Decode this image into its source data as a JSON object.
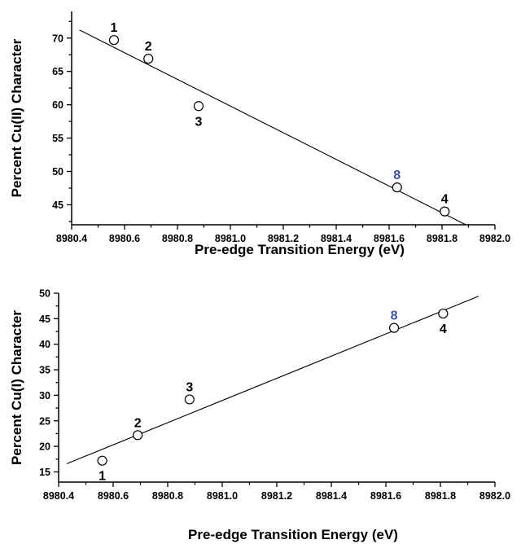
{
  "chart_data": [
    {
      "type": "scatter",
      "title": "",
      "xlabel": "Pre-edge Transition Energy (eV)",
      "ylabel": "Percent Cu(II) Character",
      "xlim": [
        8980.4,
        8982.0
      ],
      "ylim": [
        42,
        74
      ],
      "xticks": [
        8980.4,
        8980.6,
        8980.8,
        8981.0,
        8981.2,
        8981.4,
        8981.6,
        8981.8,
        8982.0
      ],
      "xtick_labels": [
        "8980.4",
        "8980.6",
        "8980.8",
        "8981.0",
        "8981.2",
        "8981.4",
        "8981.6",
        "8981.8",
        "8982.0"
      ],
      "yticks": [
        45,
        50,
        55,
        60,
        65,
        70
      ],
      "ytick_labels": [
        "45",
        "50",
        "55",
        "60",
        "65",
        "70"
      ],
      "points": [
        {
          "label": "1",
          "x": 8980.56,
          "y": 69.7,
          "label_pos": "above",
          "label_color": "#000000"
        },
        {
          "label": "2",
          "x": 8980.69,
          "y": 66.9,
          "label_pos": "above",
          "label_color": "#000000"
        },
        {
          "label": "3",
          "x": 8980.88,
          "y": 59.8,
          "label_pos": "below",
          "label_color": "#000000"
        },
        {
          "label": "8",
          "x": 8981.63,
          "y": 47.6,
          "label_pos": "above",
          "label_color": "#3d50a8"
        },
        {
          "label": "4",
          "x": 8981.81,
          "y": 44.0,
          "label_pos": "above",
          "label_color": "#000000"
        }
      ],
      "fit_line": {
        "x": [
          8980.43,
          8981.89
        ],
        "y": [
          71.2,
          42.0
        ]
      }
    },
    {
      "type": "scatter",
      "title": "",
      "xlabel": "Pre-edge Transition Energy (eV)",
      "ylabel": "Percent Cu(I) Character",
      "xlim": [
        8980.4,
        8982.0
      ],
      "ylim": [
        13,
        50
      ],
      "xticks": [
        8980.4,
        8980.6,
        8980.8,
        8981.0,
        8981.2,
        8981.4,
        8981.6,
        8981.8,
        8982.0
      ],
      "xtick_labels": [
        "8980.4",
        "8980.6",
        "8980.8",
        "8981.0",
        "8981.2",
        "8981.4",
        "8981.6",
        "8981.8",
        "8982.0"
      ],
      "yticks": [
        15,
        20,
        25,
        30,
        35,
        40,
        45,
        50
      ],
      "ytick_labels": [
        "15",
        "20",
        "25",
        "30",
        "35",
        "40",
        "45",
        "50"
      ],
      "points": [
        {
          "label": "1",
          "x": 8980.56,
          "y": 17.2,
          "label_pos": "below",
          "label_color": "#000000"
        },
        {
          "label": "2",
          "x": 8980.69,
          "y": 22.2,
          "label_pos": "above",
          "label_color": "#000000"
        },
        {
          "label": "3",
          "x": 8980.88,
          "y": 29.2,
          "label_pos": "above",
          "label_color": "#000000"
        },
        {
          "label": "8",
          "x": 8981.63,
          "y": 43.2,
          "label_pos": "above",
          "label_color": "#3d50a8"
        },
        {
          "label": "4",
          "x": 8981.81,
          "y": 46.0,
          "label_pos": "below",
          "label_color": "#000000"
        }
      ],
      "fit_line": {
        "x": [
          8980.43,
          8981.94
        ],
        "y": [
          16.6,
          49.4
        ]
      }
    }
  ]
}
